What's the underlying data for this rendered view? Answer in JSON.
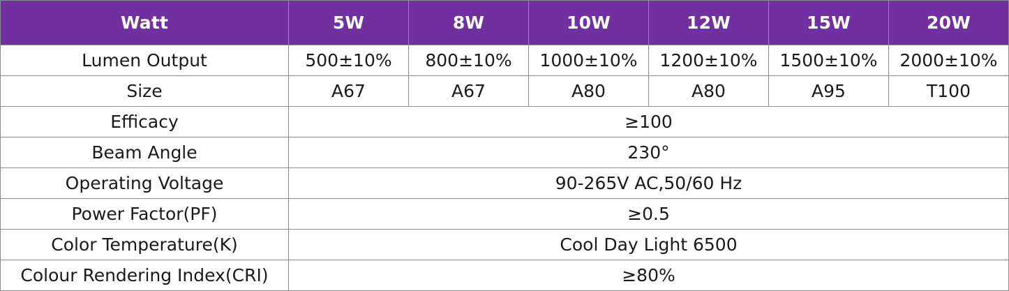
{
  "colors": {
    "header_bg": "#7030a0",
    "header_text": "#ffffff",
    "border": "#8c8c8c",
    "body_text": "#1a1a1a"
  },
  "header": {
    "label": "Watt",
    "columns": [
      "5W",
      "8W",
      "10W",
      "12W",
      "15W",
      "20W"
    ]
  },
  "rows": {
    "lumen": {
      "label": "Lumen Output",
      "values": [
        "500±10%",
        "800±10%",
        "1000±10%",
        "1200±10%",
        "1500±10%",
        "2000±10%"
      ]
    },
    "size": {
      "label": "Size",
      "values": [
        "A67",
        "A67",
        "A80",
        "A80",
        "A95",
        "T100"
      ]
    },
    "efficacy": {
      "label": "Efficacy",
      "value": "≥100"
    },
    "beam_angle": {
      "label": "Beam Angle",
      "value": "230°"
    },
    "voltage": {
      "label": "Operating Voltage",
      "value": "90-265V AC,50/60 Hz"
    },
    "power_factor": {
      "label": "Power Factor(PF)",
      "value": "≥0.5"
    },
    "color_temp": {
      "label": "Color Temperature(K)",
      "value": "Cool Day Light 6500"
    },
    "cri": {
      "label": "Colour Rendering Index(CRI)",
      "value": "≥80%"
    }
  }
}
